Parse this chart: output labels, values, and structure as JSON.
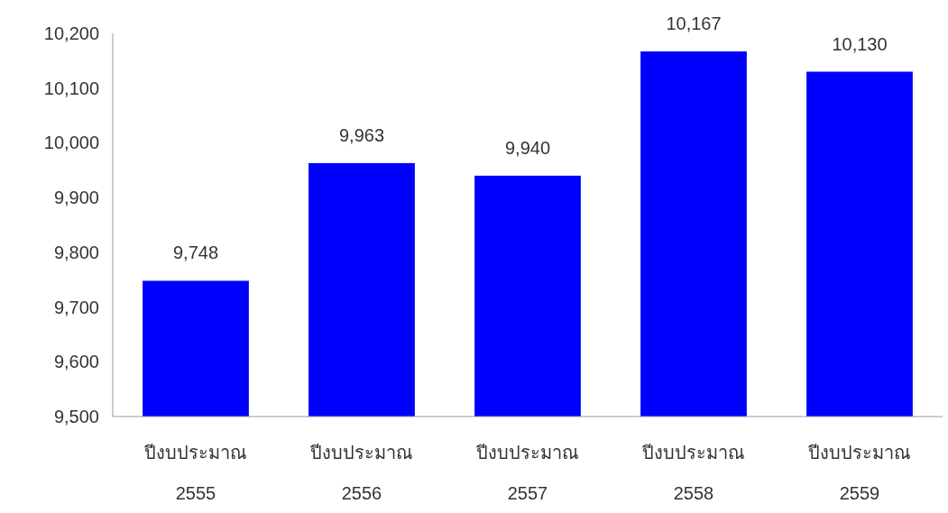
{
  "chart_data": {
    "type": "bar",
    "categories": [
      "ปีงบประมาณ\n2555",
      "ปีงบประมาณ\n2556",
      "ปีงบประมาณ\n2557",
      "ปีงบประมาณ\n2558",
      "ปีงบประมาณ\n2559"
    ],
    "values": [
      9748,
      9963,
      9940,
      10167,
      10130
    ],
    "value_labels": [
      "9,748",
      "9,963",
      "9,940",
      "10,167",
      "10,130"
    ],
    "color": "#0000ff",
    "ylim": [
      9500,
      10200
    ],
    "yticks": [
      {
        "value": 9500,
        "label": "9,500"
      },
      {
        "value": 9600,
        "label": "9,600"
      },
      {
        "value": 9700,
        "label": "9,700"
      },
      {
        "value": 9800,
        "label": "9,800"
      },
      {
        "value": 9900,
        "label": "9,900"
      },
      {
        "value": 10000,
        "label": "10,000"
      },
      {
        "value": 10100,
        "label": "10,100"
      },
      {
        "value": 10200,
        "label": "10,200"
      }
    ],
    "grid": false
  }
}
